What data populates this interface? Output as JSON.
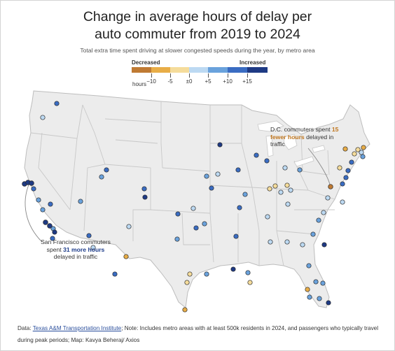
{
  "title_line1": "Change in average hours of delay per",
  "title_line2": "auto commuter from 2019 to 2024",
  "subtitle": "Total extra time spent driving at slower congested speeds during the year, by metro area",
  "legend": {
    "left_label": "Decreased",
    "right_label": "Increased",
    "unit_label": "hours",
    "ticks": [
      "−10",
      "-5",
      "±0",
      "+5",
      "+10",
      "+15"
    ],
    "colors": [
      "#bf7a33",
      "#e8ad47",
      "#f5dc9b",
      "#bcd9f2",
      "#6aa2dc",
      "#3a6cc2",
      "#1e3a84"
    ]
  },
  "annotations": {
    "sf_pre": "San Francisco commuters spent ",
    "sf_bold": "31 more hours",
    "sf_post": " delayed in traffic",
    "dc_pre": "D.C. commuters spent ",
    "dc_bold": "15 fewer hours",
    "dc_post": " delayed in traffic"
  },
  "footer": {
    "data_label": "Data: ",
    "source_link": "Texas A&M Transportation Institute",
    "note": "; Note: Includes metro areas with at least 500k residents in 2024, and passengers who typically travel during peak periods; Map: Kavya Beheraj/ Axios"
  },
  "dot_colors": {
    "c0": "#bf7a33",
    "c1": "#e8ad47",
    "c2": "#f5dc9b",
    "c3": "#bcd9f2",
    "c4": "#6aa2dc",
    "c5": "#3a6cc2",
    "c6": "#1e3a84"
  }
}
